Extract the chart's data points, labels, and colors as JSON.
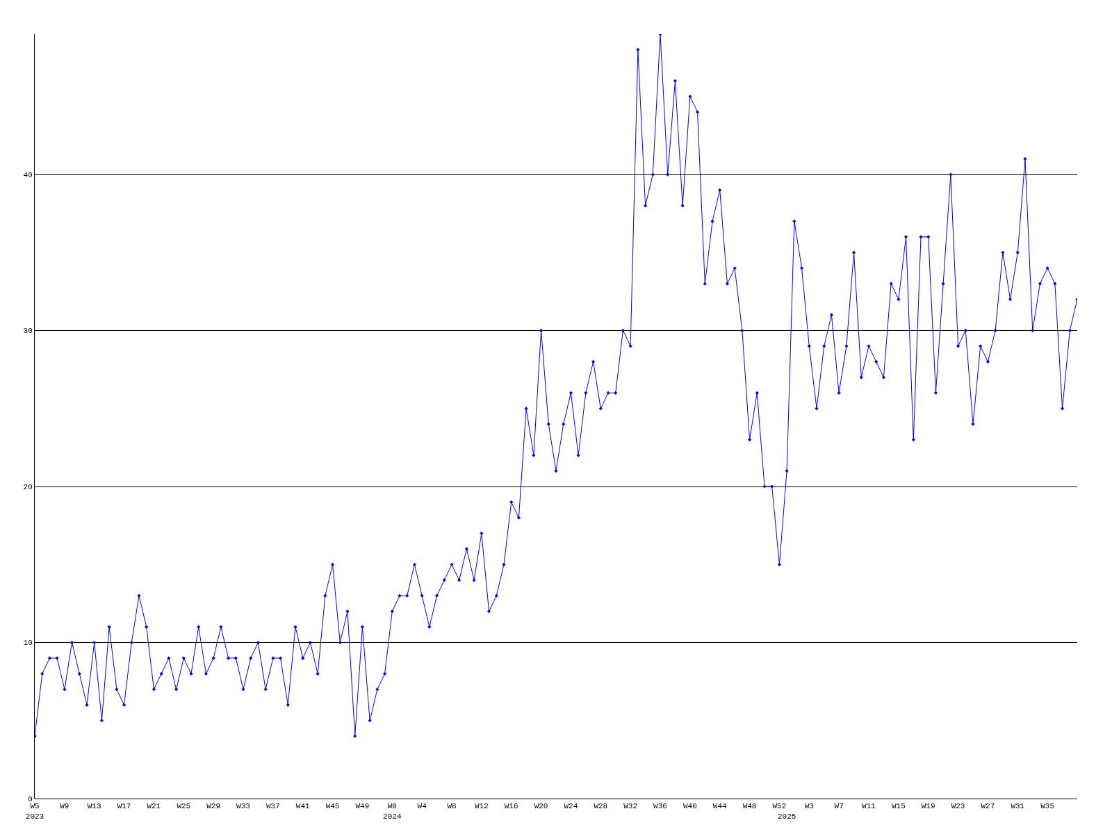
{
  "chart_data": {
    "type": "line",
    "categories": [
      "W5\n2023",
      null,
      null,
      null,
      "W9",
      null,
      null,
      null,
      "W13",
      null,
      null,
      null,
      "W17",
      null,
      null,
      null,
      "W21",
      null,
      null,
      null,
      "W25",
      null,
      null,
      null,
      "W29",
      null,
      null,
      null,
      "W33",
      null,
      null,
      null,
      "W37",
      null,
      null,
      null,
      "W41",
      null,
      null,
      null,
      "W45",
      null,
      null,
      null,
      "W49",
      null,
      null,
      null,
      "W0\n2024",
      null,
      null,
      null,
      "W4",
      null,
      null,
      null,
      "W8",
      null,
      null,
      null,
      "W12",
      null,
      null,
      null,
      "W16",
      null,
      null,
      null,
      "W20",
      null,
      null,
      null,
      "W24",
      null,
      null,
      null,
      "W28",
      null,
      null,
      null,
      "W32",
      null,
      null,
      null,
      "W36",
      null,
      null,
      null,
      "W40",
      null,
      null,
      null,
      "W44",
      null,
      null,
      null,
      "W48",
      null,
      null,
      null,
      "W52",
      "\n2025",
      null,
      null,
      "W3",
      null,
      null,
      null,
      "W7",
      null,
      null,
      null,
      "W11",
      null,
      null,
      null,
      "W15",
      null,
      null,
      null,
      "W19",
      null,
      null,
      null,
      "W23",
      null,
      null,
      null,
      "W27",
      null,
      null,
      null,
      "W31",
      null,
      null,
      null,
      "W35",
      null,
      null,
      null,
      null
    ],
    "series": [
      {
        "color": "#0000ff",
        "values": [
          4,
          8,
          9,
          9,
          7,
          10,
          8,
          6,
          10,
          5,
          11,
          7,
          6,
          10,
          13,
          11,
          7,
          8,
          9,
          7,
          9,
          8,
          11,
          8,
          9,
          11,
          9,
          9,
          7,
          9,
          10,
          7,
          9,
          9,
          6,
          11,
          9,
          10,
          8,
          13,
          15,
          10,
          12,
          4,
          11,
          5,
          7,
          8,
          12,
          13,
          13,
          15,
          13,
          11,
          13,
          14,
          15,
          14,
          16,
          14,
          17,
          12,
          13,
          15,
          19,
          18,
          25,
          22,
          30,
          24,
          21,
          24,
          26,
          22,
          26,
          28,
          25,
          26,
          26,
          30,
          29,
          48,
          38,
          40,
          49,
          40,
          46,
          38,
          45,
          44,
          33,
          37,
          39,
          33,
          34,
          30,
          23,
          26,
          20,
          20,
          15,
          21,
          37,
          34,
          29,
          25,
          29,
          31,
          26,
          29,
          35,
          27,
          29,
          28,
          27,
          33,
          32,
          36,
          23,
          36,
          36,
          26,
          33,
          40,
          29,
          30,
          24,
          29,
          28,
          30,
          35,
          32,
          35,
          41,
          30,
          33,
          34,
          33,
          25,
          30,
          32
        ]
      }
    ],
    "ylim": [
      0,
      49
    ],
    "yticks": [
      0,
      10,
      20,
      30,
      40
    ],
    "grid": "y",
    "marker": "diamond",
    "line_style": "solid"
  }
}
